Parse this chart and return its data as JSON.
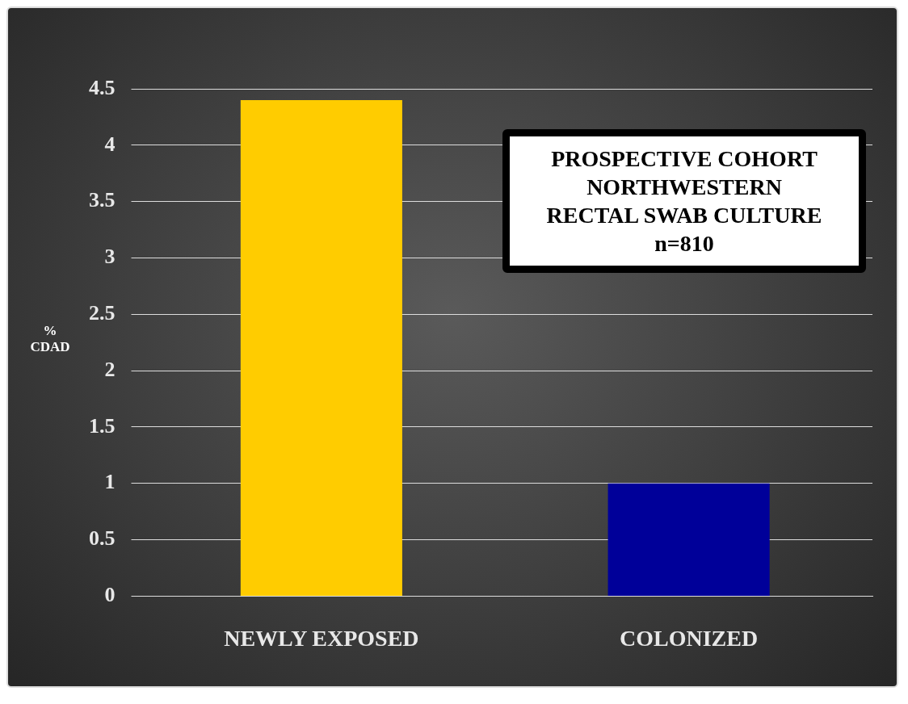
{
  "chart_data": {
    "type": "bar",
    "ylabel": "% CDAD",
    "categories": [
      "NEWLY EXPOSED",
      "COLONIZED"
    ],
    "values": [
      4.4,
      1.0
    ],
    "colors": [
      "#ffcc00",
      "#000099"
    ],
    "ylim": [
      0,
      4.5
    ],
    "yticks": [
      0,
      0.5,
      1,
      1.5,
      2,
      2.5,
      3,
      3.5,
      4,
      4.5
    ],
    "grid": "y",
    "annotations": [
      "PROSPECTIVE COHORT\nNORTHWESTERN\nRECTAL SWAB CULTURE\nn=810"
    ]
  }
}
